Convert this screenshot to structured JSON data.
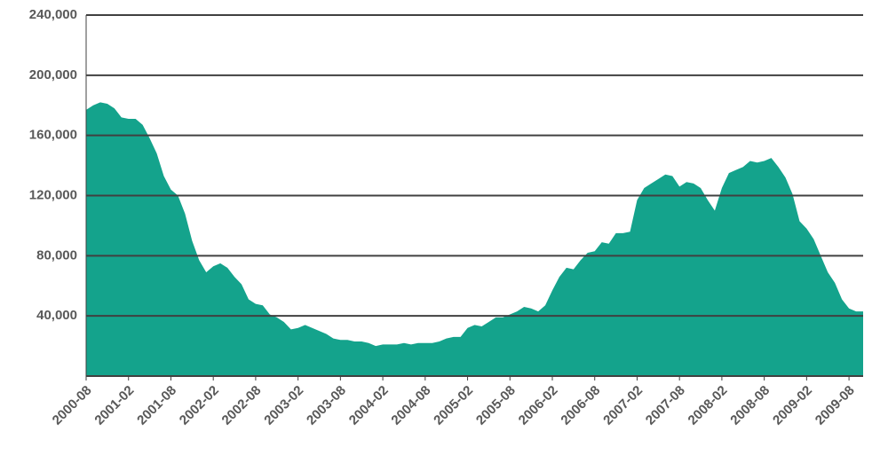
{
  "chart_data": {
    "type": "area",
    "color": "#14a38c",
    "grid": true,
    "categories": [
      "2000-08",
      null,
      null,
      null,
      null,
      null,
      "2001-02",
      null,
      null,
      null,
      null,
      null,
      "2001-08",
      null,
      null,
      null,
      null,
      null,
      "2002-02",
      null,
      null,
      null,
      null,
      null,
      "2002-08",
      null,
      null,
      null,
      null,
      null,
      "2003-02",
      null,
      null,
      null,
      null,
      null,
      "2003-08",
      null,
      null,
      null,
      null,
      null,
      "2004-02",
      null,
      null,
      null,
      null,
      null,
      "2004-08",
      null,
      null,
      null,
      null,
      null,
      "2005-02",
      null,
      null,
      null,
      null,
      null,
      "2005-08",
      null,
      null,
      null,
      null,
      null,
      "2006-02",
      null,
      null,
      null,
      null,
      null,
      "2006-08",
      null,
      null,
      null,
      null,
      null,
      "2007-02",
      null,
      null,
      null,
      null,
      null,
      "2007-08",
      null,
      null,
      null,
      null,
      null,
      "2008-02",
      null,
      null,
      null,
      null,
      null,
      "2008-08",
      null,
      null,
      null,
      null,
      null,
      "2009-02",
      null,
      null,
      null,
      null,
      null,
      "2009-08",
      null,
      null
    ],
    "values": [
      177000,
      180000,
      182000,
      181000,
      178000,
      172000,
      171000,
      171000,
      167000,
      158000,
      148000,
      133000,
      124000,
      120000,
      108000,
      90000,
      77000,
      69000,
      73000,
      75000,
      72000,
      66000,
      61000,
      51000,
      48000,
      47000,
      41000,
      39000,
      36000,
      31000,
      32000,
      34000,
      32000,
      30000,
      28000,
      25000,
      24000,
      24000,
      23000,
      23000,
      22000,
      20000,
      21000,
      21000,
      21000,
      22000,
      21000,
      22000,
      22000,
      22000,
      23000,
      25000,
      26000,
      26000,
      32000,
      34000,
      33000,
      36000,
      39000,
      39000,
      41000,
      43000,
      46000,
      45000,
      43000,
      47000,
      57000,
      66000,
      72000,
      71000,
      77000,
      82000,
      83000,
      89000,
      88000,
      95000,
      95000,
      96000,
      117000,
      125000,
      128000,
      131000,
      134000,
      133000,
      126000,
      129000,
      128000,
      125000,
      117000,
      110000,
      125000,
      135000,
      137000,
      139000,
      143000,
      142000,
      143000,
      145000,
      139000,
      132000,
      121000,
      103000,
      98000,
      91000,
      80000,
      69000,
      62000,
      51000,
      45000,
      43000,
      43000
    ],
    "ylim": [
      0,
      240000
    ],
    "yticks": [
      {
        "value": 40000,
        "label": "40,000"
      },
      {
        "value": 80000,
        "label": "80,000"
      },
      {
        "value": 120000,
        "label": "120,000"
      },
      {
        "value": 160000,
        "label": "160,000"
      },
      {
        "value": 200000,
        "label": "200,000"
      },
      {
        "value": 240000,
        "label": "240,000"
      }
    ]
  }
}
